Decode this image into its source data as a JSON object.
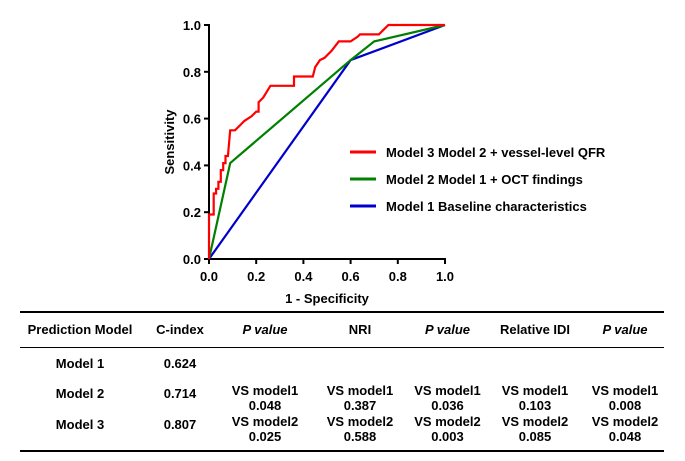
{
  "chart_data": {
    "type": "line",
    "xlabel": "1 - Specificity",
    "ylabel": "Sensitivity",
    "xlim": [
      0.0,
      1.0
    ],
    "ylim": [
      0.0,
      1.0
    ],
    "x_ticks": [
      "0.0",
      "0.2",
      "0.4",
      "0.6",
      "0.8",
      "1.0"
    ],
    "y_ticks": [
      "0.0",
      "0.2",
      "0.4",
      "0.6",
      "0.8",
      "1.0"
    ],
    "legend_position": "right",
    "series": [
      {
        "name": "Model 3  Model 2 + vessel-level QFR",
        "color": "#ff0000",
        "points": [
          [
            0.0,
            0.0
          ],
          [
            0.0,
            0.19
          ],
          [
            0.02,
            0.19
          ],
          [
            0.02,
            0.28
          ],
          [
            0.03,
            0.28
          ],
          [
            0.03,
            0.3
          ],
          [
            0.04,
            0.3
          ],
          [
            0.04,
            0.33
          ],
          [
            0.05,
            0.33
          ],
          [
            0.05,
            0.38
          ],
          [
            0.06,
            0.38
          ],
          [
            0.06,
            0.41
          ],
          [
            0.07,
            0.41
          ],
          [
            0.07,
            0.44
          ],
          [
            0.08,
            0.44
          ],
          [
            0.09,
            0.55
          ],
          [
            0.11,
            0.55
          ],
          [
            0.13,
            0.57
          ],
          [
            0.15,
            0.59
          ],
          [
            0.18,
            0.61
          ],
          [
            0.2,
            0.63
          ],
          [
            0.21,
            0.63
          ],
          [
            0.21,
            0.67
          ],
          [
            0.23,
            0.69
          ],
          [
            0.26,
            0.74
          ],
          [
            0.3,
            0.74
          ],
          [
            0.36,
            0.74
          ],
          [
            0.36,
            0.78
          ],
          [
            0.38,
            0.78
          ],
          [
            0.44,
            0.78
          ],
          [
            0.45,
            0.82
          ],
          [
            0.47,
            0.85
          ],
          [
            0.49,
            0.86
          ],
          [
            0.52,
            0.89
          ],
          [
            0.55,
            0.93
          ],
          [
            0.6,
            0.93
          ],
          [
            0.63,
            0.95
          ],
          [
            0.64,
            0.96
          ],
          [
            0.72,
            0.96
          ],
          [
            0.74,
            0.98
          ],
          [
            0.76,
            1.0
          ],
          [
            1.0,
            1.0
          ]
        ]
      },
      {
        "name": "Model 2  Model 1 + OCT findings",
        "color": "#008000",
        "points": [
          [
            0.0,
            0.0
          ],
          [
            0.09,
            0.41
          ],
          [
            0.6,
            0.85
          ],
          [
            0.7,
            0.93
          ],
          [
            1.0,
            1.0
          ]
        ]
      },
      {
        "name": "Model 1  Baseline characteristics",
        "color": "#0000cc",
        "points": [
          [
            0.0,
            0.0
          ],
          [
            0.6,
            0.85
          ],
          [
            1.0,
            1.0
          ]
        ]
      }
    ]
  },
  "table": {
    "headers": [
      "Prediction Model",
      "C-index",
      "P value",
      "NRI",
      "P value",
      "Relative IDI",
      "P value"
    ],
    "rows": [
      {
        "model": "Model 1",
        "c_index": "0.624",
        "p1": "",
        "p1v": "",
        "nri": "",
        "nriv": "",
        "p2": "",
        "p2v": "",
        "idi": "",
        "idiv": "",
        "p3": "",
        "p3v": ""
      },
      {
        "model": "Model 2",
        "c_index": "0.714",
        "p1": "VS model1",
        "p1v": "0.048",
        "nri": "VS model1",
        "nriv": "0.387",
        "p2": "VS model1",
        "p2v": "0.036",
        "idi": "VS model1",
        "idiv": "0.103",
        "p3": "VS model1",
        "p3v": "0.008"
      },
      {
        "model": "Model 3",
        "c_index": "0.807",
        "p1": "VS model2",
        "p1v": "0.025",
        "nri": "VS model2",
        "nriv": "0.588",
        "p2": "VS model2",
        "p2v": "0.003",
        "idi": "VS model2",
        "idiv": "0.085",
        "p3": "VS model2",
        "p3v": "0.048"
      }
    ]
  }
}
